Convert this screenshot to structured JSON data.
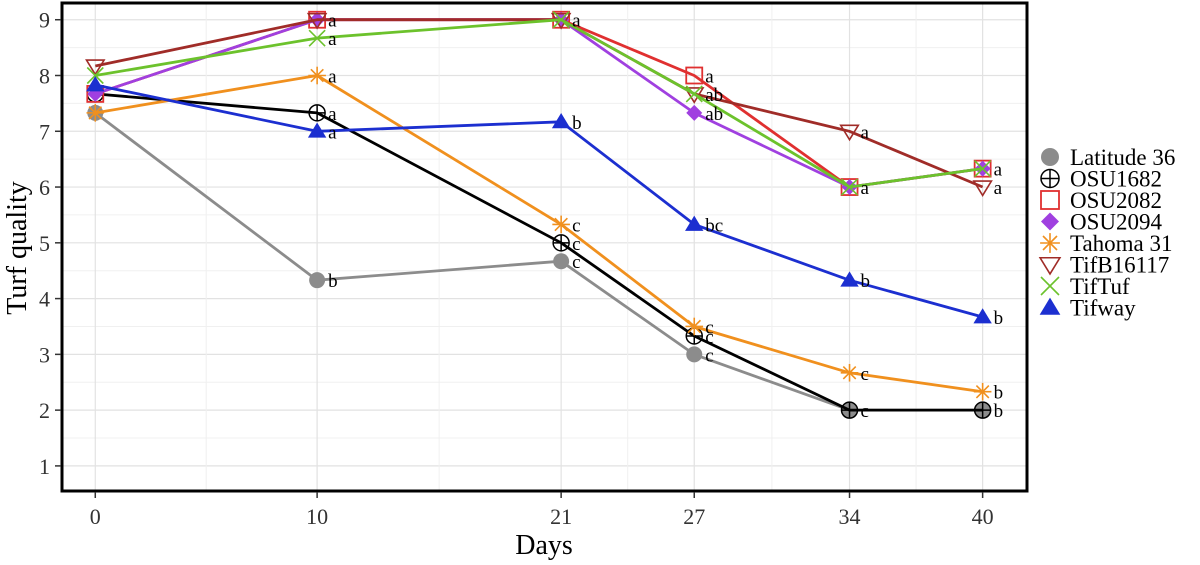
{
  "chart_data": {
    "type": "line",
    "xlabel": "Days",
    "ylabel": "Turf quality",
    "x": [
      0,
      10,
      21,
      27,
      34,
      40
    ],
    "xlim": [
      -1.5,
      42
    ],
    "ylim": [
      0.55,
      9.3
    ],
    "yticks": [
      1,
      2,
      3,
      4,
      5,
      6,
      7,
      8,
      9
    ],
    "grid": true,
    "legend_position": "right",
    "series": [
      {
        "name": "Latitude 36",
        "color": "#8c8c8c",
        "marker": "circle",
        "values": [
          7.33,
          4.33,
          4.67,
          3.0,
          2.0,
          2.0
        ],
        "labels": [
          "",
          "b",
          "c",
          "c",
          "",
          ""
        ]
      },
      {
        "name": "OSU1682",
        "color": "#000000",
        "marker": "circle-plus",
        "values": [
          7.67,
          7.33,
          5.0,
          3.33,
          2.0,
          2.0
        ],
        "labels": [
          "",
          "a",
          "c",
          "c",
          "c",
          "b"
        ]
      },
      {
        "name": "OSU2082",
        "color": "#e03030",
        "marker": "square",
        "values": [
          7.67,
          9.0,
          9.0,
          8.0,
          6.0,
          6.33
        ],
        "labels": [
          "",
          "",
          "",
          "a",
          "",
          ""
        ]
      },
      {
        "name": "OSU2094",
        "color": "#a040e0",
        "marker": "diamond",
        "values": [
          7.67,
          9.0,
          9.0,
          7.33,
          6.0,
          6.33
        ],
        "labels": [
          "",
          "a",
          "a",
          "ab",
          "a",
          "a"
        ]
      },
      {
        "name": "Tahoma 31",
        "color": "#f0901e",
        "marker": "asterisk",
        "values": [
          7.33,
          8.0,
          5.33,
          3.5,
          2.67,
          2.33
        ],
        "labels": [
          "",
          "a",
          "c",
          "c",
          "c",
          "b"
        ]
      },
      {
        "name": "TifB16117",
        "color": "#a02c28",
        "marker": "triangle-down",
        "values": [
          8.17,
          9.0,
          9.0,
          7.67,
          7.0,
          6.0
        ],
        "labels": [
          "",
          "",
          "",
          "ab",
          "a",
          "a"
        ]
      },
      {
        "name": "TifTuf",
        "color": "#6cc22c",
        "marker": "x",
        "values": [
          8.0,
          8.67,
          9.0,
          7.67,
          6.0,
          6.33
        ],
        "labels": [
          "",
          "a",
          "",
          "",
          "",
          ""
        ]
      },
      {
        "name": "Tifway",
        "color": "#1c2fd0",
        "marker": "triangle-up",
        "values": [
          7.83,
          7.0,
          7.17,
          5.33,
          4.33,
          3.67
        ],
        "labels": [
          "",
          "a",
          "b",
          "bc",
          "b",
          "b"
        ]
      }
    ]
  }
}
